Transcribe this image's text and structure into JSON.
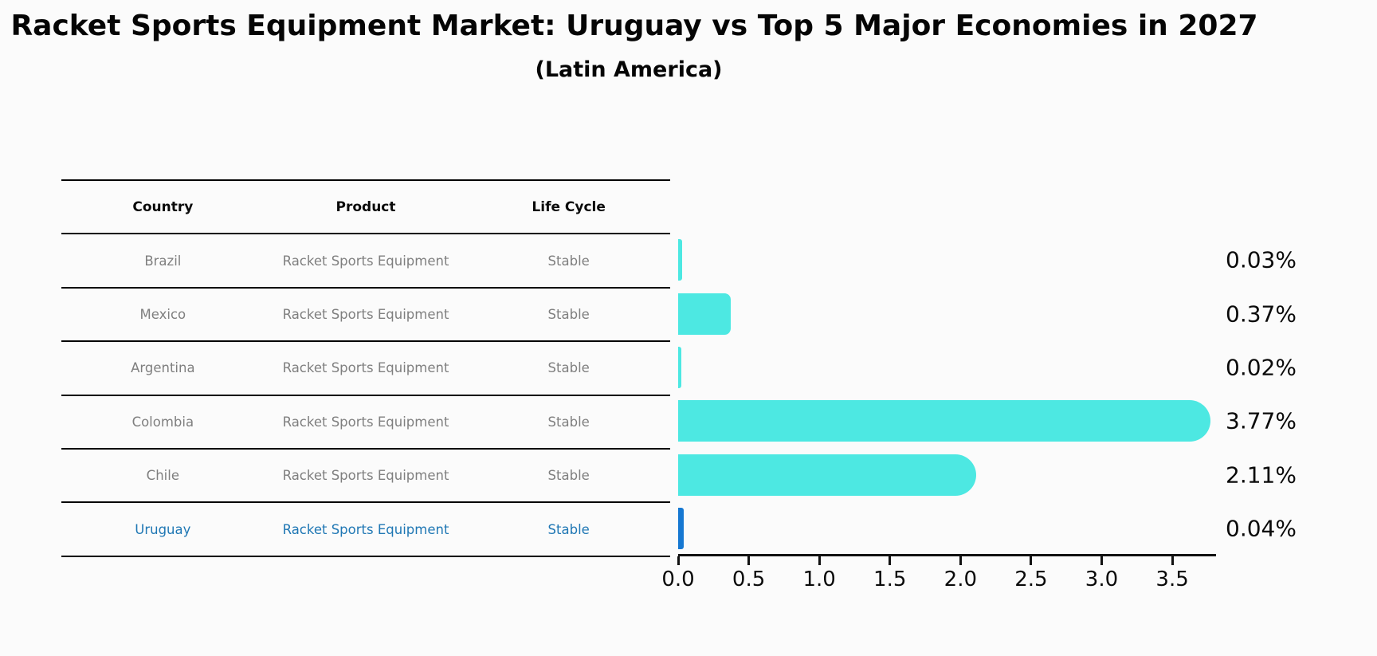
{
  "header": {
    "title": "Racket Sports Equipment Market: Uruguay vs Top 5 Major Economies in 2027",
    "subtitle": "(Latin America)"
  },
  "table": {
    "columns": [
      "Country",
      "Product",
      "Life Cycle"
    ],
    "rows": [
      {
        "country": "Brazil",
        "product": "Racket Sports Equipment",
        "life_cycle": "Stable",
        "highlight": false
      },
      {
        "country": "Mexico",
        "product": "Racket Sports Equipment",
        "life_cycle": "Stable",
        "highlight": false
      },
      {
        "country": "Argentina",
        "product": "Racket Sports Equipment",
        "life_cycle": "Stable",
        "highlight": false
      },
      {
        "country": "Colombia",
        "product": "Racket Sports Equipment",
        "life_cycle": "Stable",
        "highlight": false
      },
      {
        "country": "Chile",
        "product": "Racket Sports Equipment",
        "life_cycle": "Stable",
        "highlight": false
      },
      {
        "country": "Uruguay",
        "product": "Racket Sports Equipment",
        "life_cycle": "Stable",
        "highlight": true
      }
    ]
  },
  "chart_data": {
    "type": "bar",
    "orientation": "horizontal",
    "title": "Racket Sports Equipment Market: Uruguay vs Top 5 Major Economies in 2027",
    "subtitle": "(Latin America)",
    "categories": [
      "Brazil",
      "Mexico",
      "Argentina",
      "Colombia",
      "Chile",
      "Uruguay"
    ],
    "values": [
      0.03,
      0.37,
      0.02,
      3.77,
      2.11,
      0.04
    ],
    "value_labels": [
      "0.03%",
      "0.37%",
      "0.02%",
      "3.77%",
      "2.11%",
      "0.04%"
    ],
    "xlabel": "",
    "ylabel": "",
    "xlim": [
      0,
      3.81
    ],
    "x_tick_values": [
      0.0,
      0.5,
      1.0,
      1.5,
      2.0,
      2.5,
      3.0,
      3.5
    ],
    "x_tick_labels": [
      "0.0",
      "0.5",
      "1.0",
      "1.5",
      "2.0",
      "2.5",
      "3.0",
      "3.5"
    ],
    "grid": false,
    "legend": false,
    "highlight_index": 5
  },
  "colors": {
    "background": "#fbfbfb",
    "bar_color": "#4de8e2",
    "highlight_bar_color": "#1678d2",
    "highlight_text_color": "#1f77b4",
    "table_text_color": "#7f7f7f",
    "axis_color": "#111111",
    "label_color": "#0a0a0a"
  }
}
